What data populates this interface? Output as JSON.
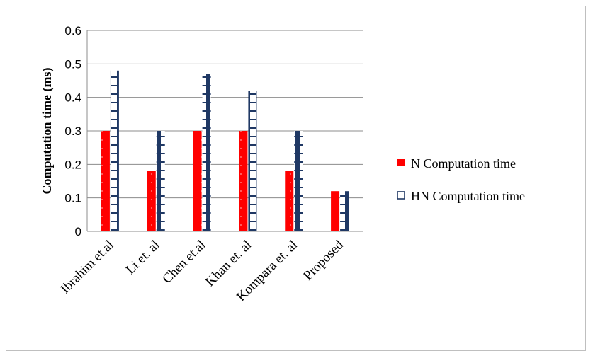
{
  "chart_data": {
    "type": "bar",
    "title": "",
    "xlabel": "",
    "ylabel": "Computation time (ms)",
    "ylim": [
      0,
      0.6
    ],
    "yticks": [
      "0",
      "0.1",
      "0.2",
      "0.3",
      "0.4",
      "0.5",
      "0.6"
    ],
    "grid": true,
    "legend_position": "right",
    "categories": [
      "Ibrahim et.al",
      "Li et. al",
      "Chen et.al",
      "Khan et. al",
      "Kompara et. al",
      "Proposed"
    ],
    "series": [
      {
        "name": "N Computation time",
        "color": "#ff0000",
        "values": [
          0.3,
          0.18,
          0.3,
          0.3,
          0.18,
          0.12
        ]
      },
      {
        "name": "HN Computation time",
        "color": "#1f3864",
        "values": [
          0.48,
          0.3,
          0.47,
          0.42,
          0.3,
          0.12
        ]
      }
    ]
  }
}
